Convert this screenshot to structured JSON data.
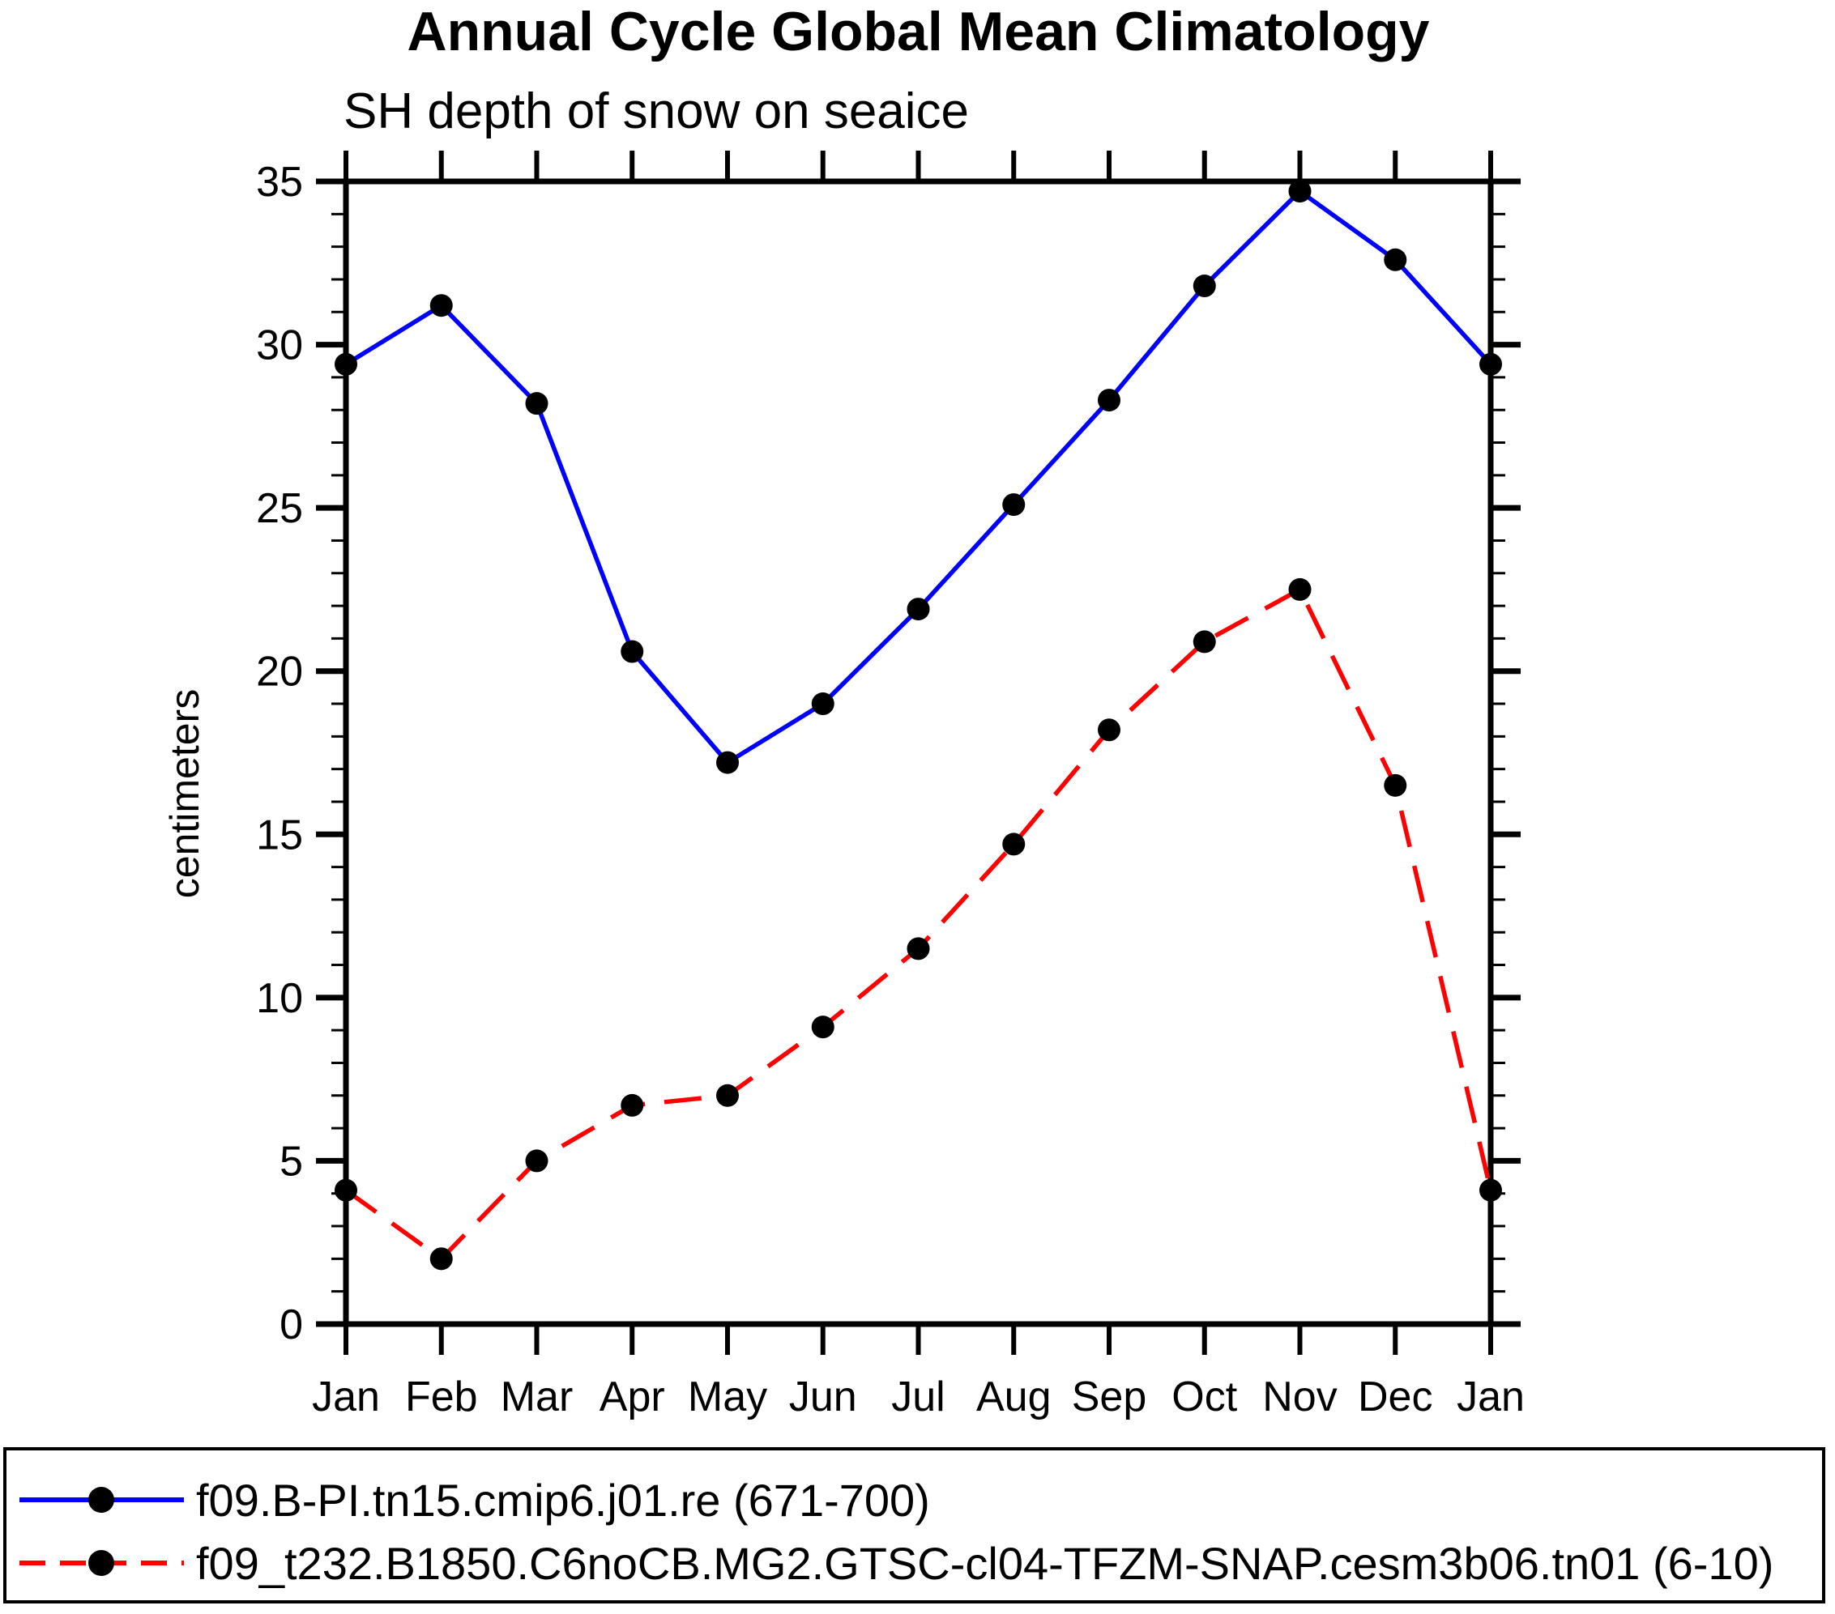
{
  "page": {
    "background": "#ffffff"
  },
  "chart_data": {
    "type": "line",
    "title": "Annual Cycle Global Mean Climatology",
    "subtitle": "SH depth of snow on seaice",
    "ylabel": "centimeters",
    "xlabel": "",
    "categories": [
      "Jan",
      "Feb",
      "Mar",
      "Apr",
      "May",
      "Jun",
      "Jul",
      "Aug",
      "Sep",
      "Oct",
      "Nov",
      "Dec",
      "Jan"
    ],
    "ylim": [
      0,
      35
    ],
    "ytick_major": 5,
    "ytick_minor": 1,
    "grid": false,
    "legend_position": "bottom",
    "axis_color": "#000000",
    "marker_radius": 14,
    "series": [
      {
        "name": "f09.B-PI.tn15.cmip6.j01.re (671-700)",
        "color": "#0000ff",
        "line_style": "solid",
        "marker": "circle",
        "marker_color": "#000000",
        "values": [
          29.4,
          31.2,
          28.2,
          20.6,
          17.2,
          19.0,
          21.9,
          25.1,
          28.3,
          31.8,
          34.7,
          32.6,
          29.4
        ]
      },
      {
        "name": "f09_t232.B1850.C6noCB.MG2.GTSC-cl04-TFZM-SNAP.cesm3b06.tn01 (6-10)",
        "color": "#ff0000",
        "line_style": "dashed",
        "marker": "circle",
        "marker_color": "#000000",
        "values": [
          4.1,
          2.0,
          5.0,
          6.7,
          7.0,
          9.1,
          11.5,
          14.7,
          18.2,
          20.9,
          22.5,
          16.5,
          4.1
        ]
      }
    ]
  }
}
